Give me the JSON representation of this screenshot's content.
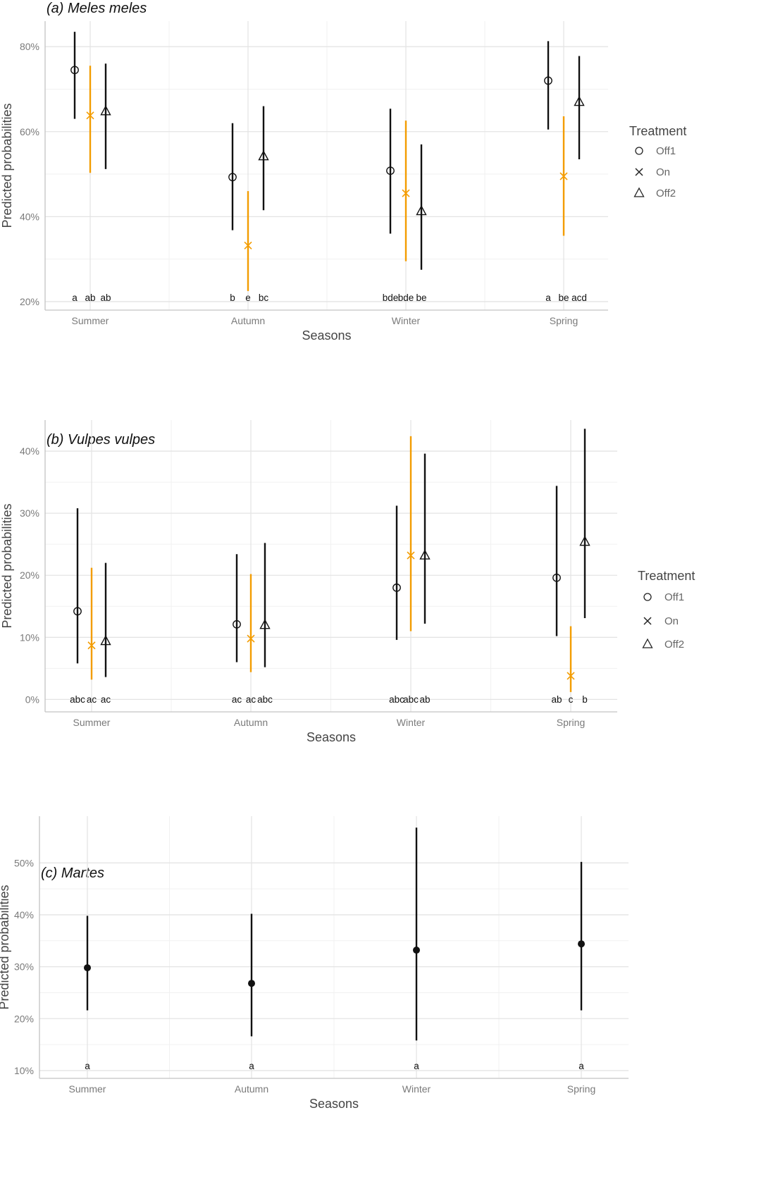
{
  "chart_data": [
    {
      "type": "point-range",
      "title": "(a) Meles meles",
      "xlabel": "Seasons",
      "ylabel": "Predicted probabilities",
      "categories": [
        "Summer",
        "Autumn",
        "Winter",
        "Spring"
      ],
      "ylim": [
        18,
        86
      ],
      "yticks": [
        20,
        40,
        60,
        80
      ],
      "ytick_labels": [
        "20%",
        "40%",
        "60%",
        "80%"
      ],
      "legend": {
        "title": "Treatment",
        "position": "right"
      },
      "series": [
        {
          "name": "Off1",
          "marker": "circle",
          "color": "#111111",
          "values": [
            74.5,
            49.3,
            50.8,
            72.0
          ],
          "lower": [
            63.0,
            36.8,
            36.0,
            60.5
          ],
          "upper": [
            83.5,
            62.0,
            65.4,
            81.3
          ],
          "letters": [
            "a",
            "b",
            "bde",
            "a"
          ]
        },
        {
          "name": "On",
          "marker": "cross",
          "color": "#f39c00",
          "values": [
            63.8,
            33.2,
            45.5,
            49.5
          ],
          "lower": [
            50.3,
            22.5,
            29.5,
            35.5
          ],
          "upper": [
            75.5,
            46.0,
            62.6,
            63.6
          ],
          "letters": [
            "ab",
            "e",
            "bde",
            "be"
          ]
        },
        {
          "name": "Off2",
          "marker": "triangle",
          "color": "#111111",
          "values": [
            64.8,
            54.2,
            41.3,
            67.0
          ],
          "lower": [
            51.2,
            41.5,
            27.5,
            53.5
          ],
          "upper": [
            76.0,
            66.0,
            57.0,
            77.8
          ],
          "letters": [
            "ab",
            "bc",
            "be",
            "acd"
          ]
        }
      ]
    },
    {
      "type": "point-range",
      "title": "(b) Vulpes vulpes",
      "xlabel": "Seasons",
      "ylabel": "Predicted probabilities",
      "categories": [
        "Summer",
        "Autumn",
        "Winter",
        "Spring"
      ],
      "ylim": [
        -2,
        45
      ],
      "yticks": [
        0,
        10,
        20,
        30,
        40
      ],
      "ytick_labels": [
        "0%",
        "10%",
        "20%",
        "30%",
        "40%"
      ],
      "legend": {
        "title": "Treatment",
        "position": "right"
      },
      "series": [
        {
          "name": "Off1",
          "marker": "circle",
          "color": "#111111",
          "values": [
            14.2,
            12.1,
            18.0,
            19.6
          ],
          "lower": [
            5.8,
            6.0,
            9.6,
            10.2
          ],
          "upper": [
            30.8,
            23.4,
            31.2,
            34.4
          ],
          "letters": [
            "abc",
            "ac",
            "abc",
            "ab"
          ]
        },
        {
          "name": "On",
          "marker": "cross",
          "color": "#f39c00",
          "values": [
            8.7,
            9.8,
            23.2,
            3.8
          ],
          "lower": [
            3.2,
            4.4,
            11.0,
            1.2
          ],
          "upper": [
            21.2,
            20.2,
            42.4,
            11.8
          ],
          "letters": [
            "ac",
            "ac",
            "abc",
            "c"
          ]
        },
        {
          "name": "Off2",
          "marker": "triangle",
          "color": "#111111",
          "values": [
            9.4,
            12.0,
            23.2,
            25.4
          ],
          "lower": [
            3.6,
            5.2,
            12.2,
            13.1
          ],
          "upper": [
            22.0,
            25.2,
            39.6,
            43.6
          ],
          "letters": [
            "ac",
            "abc",
            "ab",
            "b"
          ]
        }
      ]
    },
    {
      "type": "point-range",
      "title": "(c) Martes",
      "xlabel": "Seasons",
      "ylabel": "Predicted probabilities",
      "categories": [
        "Summer",
        "Autumn",
        "Winter",
        "Spring"
      ],
      "ylim": [
        8.5,
        59
      ],
      "yticks": [
        10,
        20,
        30,
        40,
        50
      ],
      "ytick_labels": [
        "10%",
        "20%",
        "30%",
        "40%",
        "50%"
      ],
      "series": [
        {
          "name": "Martes",
          "marker": "dot",
          "color": "#111111",
          "values": [
            29.8,
            26.8,
            33.2,
            34.4
          ],
          "lower": [
            21.6,
            16.6,
            15.8,
            21.6
          ],
          "upper": [
            39.8,
            40.2,
            56.8,
            50.2
          ],
          "letters": [
            "a",
            "a",
            "a",
            "a"
          ]
        }
      ]
    }
  ]
}
